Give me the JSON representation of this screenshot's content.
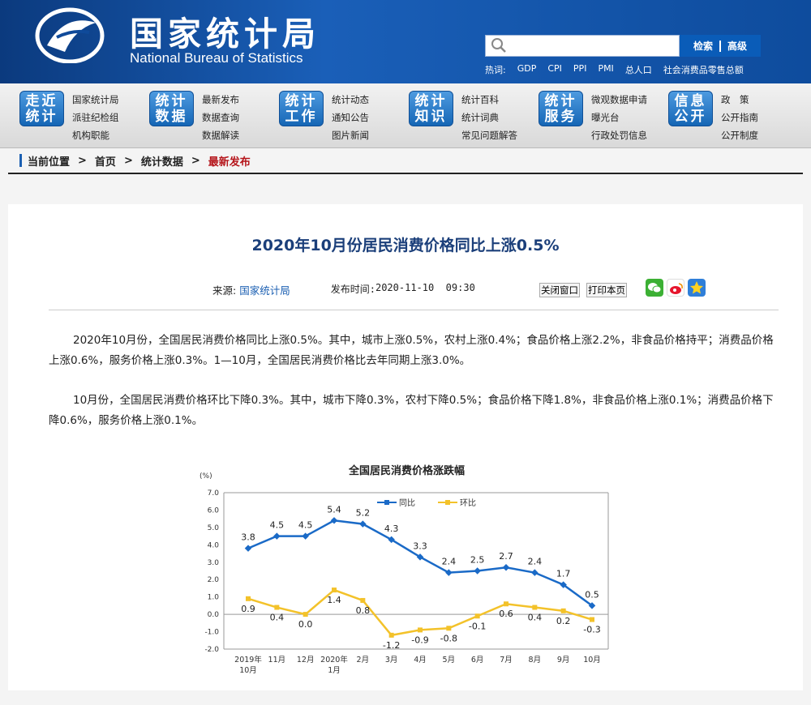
{
  "header": {
    "site_title_cn": "国家统计局",
    "site_title_en": "National Bureau of Statistics",
    "search": {
      "placeholder": "",
      "search_label": "检索",
      "advanced_label": "高级"
    },
    "hotwords": [
      "热词:",
      "GDP",
      "CPI",
      "PPI",
      "PMI",
      "总人口",
      "社会消费品零售总额"
    ]
  },
  "nav": [
    {
      "badge": [
        "走近",
        "统计"
      ],
      "links": [
        "国家统计局",
        "派驻纪检组",
        "机构职能"
      ]
    },
    {
      "badge": [
        "统计",
        "数据"
      ],
      "links": [
        "最新发布",
        "数据查询",
        "数据解读"
      ]
    },
    {
      "badge": [
        "统计",
        "工作"
      ],
      "links": [
        "统计动态",
        "通知公告",
        "图片新闻"
      ]
    },
    {
      "badge": [
        "统计",
        "知识"
      ],
      "links": [
        "统计百科",
        "统计词典",
        "常见问题解答"
      ]
    },
    {
      "badge": [
        "统计",
        "服务"
      ],
      "links": [
        "微观数据申请",
        "曝光台",
        "行政处罚信息"
      ]
    },
    {
      "badge": [
        "信息",
        "公开"
      ],
      "links": [
        "政　策",
        "公开指南",
        "公开制度"
      ]
    }
  ],
  "breadcrumb": {
    "location": "当前位置",
    "home": "首页",
    "level2": "统计数据",
    "current": "最新发布",
    "sep": ">"
  },
  "article": {
    "title": "2020年10月份居民消费价格同比上涨0.5%",
    "source_label": "来源:",
    "source": "国家统计局",
    "time_label": "发布时间:",
    "time": "2020-11-10  09:30",
    "close_label": "关闭窗口",
    "print_label": "打印本页",
    "para1": "2020年10月份，全国居民消费价格同比上涨0.5%。其中，城市上涨0.5%，农村上涨0.4%；食品价格上涨2.2%，非食品价格持平；消费品价格上涨0.6%，服务价格上涨0.3%。1—10月，全国居民消费价格比去年同期上涨3.0%。",
    "para2": "10月份，全国居民消费价格环比下降0.3%。其中，城市下降0.3%，农村下降0.5%；食品价格下降1.8%，非食品价格上涨0.1%；消费品价格下降0.6%，服务价格上涨0.1%。"
  },
  "colors": {
    "brand_blue": "#0f4a9a",
    "yoy": "#1a6ac7",
    "mom": "#f3c22a",
    "crumb_current": "#b5151b"
  },
  "chart_data": {
    "type": "line",
    "title": "全国居民消费价格涨跌幅",
    "ylabel": "(%)",
    "ylim": [
      -2.0,
      7.0
    ],
    "yticks": [
      "7.0",
      "6.0",
      "5.0",
      "4.0",
      "3.0",
      "2.0",
      "1.0",
      "0.0",
      "-1.0",
      "-2.0"
    ],
    "categories": [
      [
        "2019年",
        "10月"
      ],
      [
        "11月"
      ],
      [
        "12月"
      ],
      [
        "2020年",
        "1月"
      ],
      [
        "2月"
      ],
      [
        "3月"
      ],
      [
        "4月"
      ],
      [
        "5月"
      ],
      [
        "6月"
      ],
      [
        "7月"
      ],
      [
        "8月"
      ],
      [
        "9月"
      ],
      [
        "10月"
      ]
    ],
    "legend_position": "top",
    "series": [
      {
        "name": "同比",
        "color": "#1a6ac7",
        "values": [
          3.8,
          4.5,
          4.5,
          5.4,
          5.2,
          4.3,
          3.3,
          2.4,
          2.5,
          2.7,
          2.4,
          1.7,
          0.5
        ],
        "labels": [
          "3.8",
          "4.5",
          "4.5",
          "5.4",
          "5.2",
          "4.3",
          "3.3",
          "2.4",
          "2.5",
          "2.7",
          "2.4",
          "1.7",
          "0.5"
        ]
      },
      {
        "name": "环比",
        "color": "#f3c22a",
        "values": [
          0.9,
          0.4,
          0.0,
          1.4,
          0.8,
          -1.2,
          -0.9,
          -0.8,
          -0.1,
          0.6,
          0.4,
          0.2,
          -0.3
        ],
        "labels": [
          "0.9",
          "0.4",
          "0.0",
          "1.4",
          "0.8",
          "-1.2",
          "-0.9",
          "-0.8",
          "-0.1",
          "0.6",
          "0.4",
          "0.2",
          "-0.3"
        ]
      }
    ]
  }
}
